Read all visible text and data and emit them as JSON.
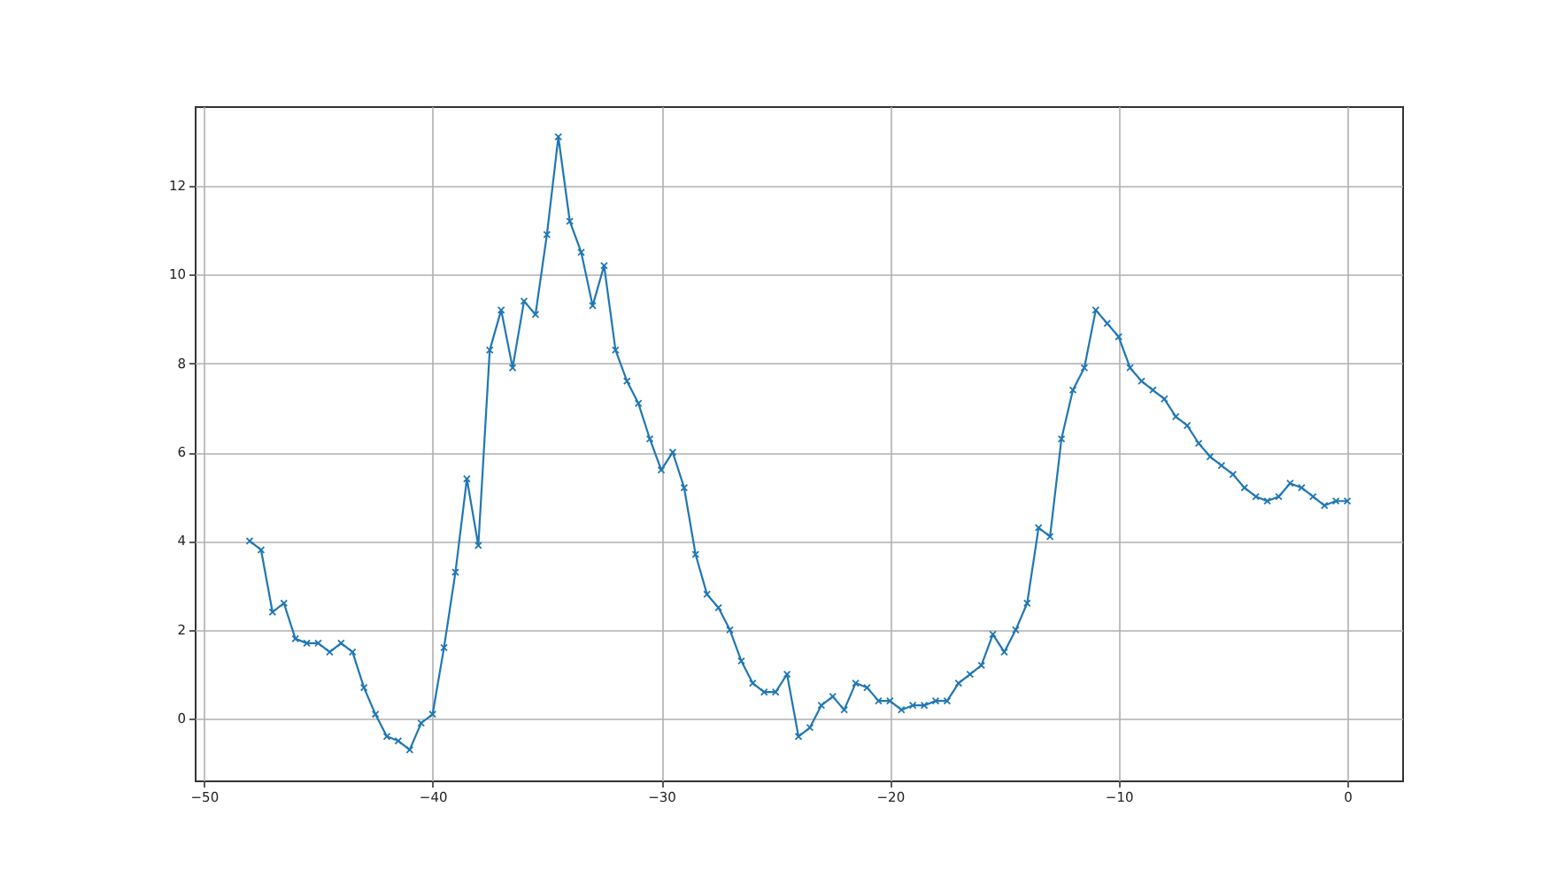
{
  "chart_data": {
    "type": "line",
    "x": [
      -48,
      -47.5,
      -47,
      -46.5,
      -46,
      -45.5,
      -45,
      -44.5,
      -44,
      -43.5,
      -43,
      -42.5,
      -42,
      -41.5,
      -41,
      -40.5,
      -40,
      -39.5,
      -39,
      -38.5,
      -38,
      -37.5,
      -37,
      -36.5,
      -36,
      -35.5,
      -35,
      -34.5,
      -34,
      -33.5,
      -33,
      -32.5,
      -32,
      -31.5,
      -31,
      -30.5,
      -30,
      -29.5,
      -29,
      -28.5,
      -28,
      -27.5,
      -27,
      -26.5,
      -26,
      -25.5,
      -25,
      -24.5,
      -24,
      -23.5,
      -23,
      -22.5,
      -22,
      -21.5,
      -21,
      -20.5,
      -20,
      -19.5,
      -19,
      -18.5,
      -18,
      -17.5,
      -17,
      -16.5,
      -16,
      -15.5,
      -15,
      -14.5,
      -14,
      -13.5,
      -13,
      -12.5,
      -12,
      -11.5,
      -11,
      -10.5,
      -10,
      -9.5,
      -9,
      -8.5,
      -8,
      -7.5,
      -7,
      -6.5,
      -6,
      -5.5,
      -5,
      -4.5,
      -4,
      -3.5,
      -3,
      -2.5,
      -2,
      -1.5,
      -1,
      -0.5,
      0
    ],
    "values": [
      4.0,
      3.8,
      2.4,
      2.6,
      1.8,
      1.7,
      1.7,
      1.5,
      1.7,
      1.5,
      0.7,
      0.1,
      -0.4,
      -0.5,
      -0.7,
      -0.1,
      0.1,
      1.6,
      3.3,
      5.4,
      3.9,
      8.3,
      9.2,
      7.9,
      9.4,
      9.1,
      10.9,
      13.1,
      11.2,
      10.5,
      9.3,
      10.2,
      8.3,
      7.6,
      7.1,
      6.3,
      5.6,
      6.0,
      5.2,
      3.7,
      2.8,
      2.5,
      2.0,
      1.3,
      0.8,
      0.6,
      0.6,
      1.0,
      -0.4,
      -0.2,
      0.3,
      0.5,
      0.2,
      0.8,
      0.7,
      0.4,
      0.4,
      0.2,
      0.3,
      0.3,
      0.4,
      0.4,
      0.8,
      1.0,
      1.2,
      1.9,
      1.5,
      2.0,
      2.6,
      4.3,
      4.1,
      6.3,
      7.4,
      7.9,
      9.2,
      8.9,
      8.6,
      7.9,
      7.6,
      7.4,
      7.2,
      6.8,
      6.6,
      6.2,
      5.9,
      5.7,
      5.5,
      5.2,
      5.0,
      4.9,
      5.0,
      5.3,
      5.2,
      5.0,
      4.8,
      4.9,
      4.9
    ],
    "color": "#1f77b4",
    "xlim": [
      -50.4,
      2.4
    ],
    "ylim": [
      -1.39,
      13.79
    ],
    "xticks": [
      -50,
      -40,
      -30,
      -20,
      -10,
      0
    ],
    "yticks": [
      0,
      2,
      4,
      6,
      8,
      10,
      12
    ],
    "grid": true,
    "marker": "cross",
    "line_style": "solid"
  }
}
